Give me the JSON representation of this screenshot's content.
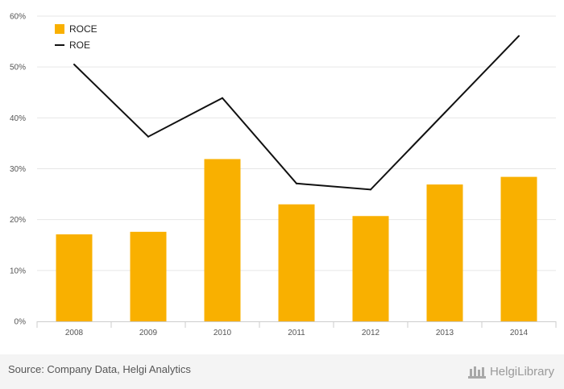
{
  "chart_data": {
    "type": "bar",
    "categories": [
      "2008",
      "2009",
      "2010",
      "2011",
      "2012",
      "2013",
      "2014"
    ],
    "series": [
      {
        "name": "ROCE",
        "kind": "bar",
        "color": "#f9b000",
        "values": [
          17.1,
          17.6,
          31.9,
          23.0,
          20.7,
          26.9,
          28.4
        ]
      },
      {
        "name": "ROE",
        "kind": "line",
        "color": "#111111",
        "values": [
          50.5,
          36.3,
          43.9,
          27.1,
          25.9,
          41.0,
          56.1
        ]
      }
    ],
    "ylim": [
      0,
      60
    ],
    "yticks": [
      "0%",
      "10%",
      "20%",
      "30%",
      "40%",
      "50%",
      "60%"
    ],
    "grid": true,
    "legend": "top-left"
  },
  "footer": {
    "source": "Source: Company Data, Helgi Analytics",
    "brand": "HelgiLibrary"
  }
}
